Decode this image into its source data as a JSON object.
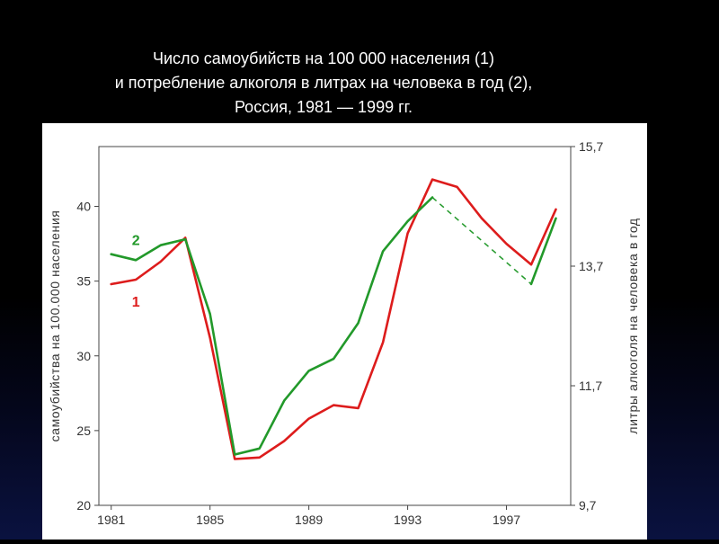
{
  "title_lines": [
    "Число самоубийств на 100 000  населения (1)",
    "и потребление алкоголя в литрах на человека в год (2),",
    "Россия, 1981 — 1999 гг."
  ],
  "chart_data": {
    "type": "line",
    "title": "Число самоубийств на 100 000  населения (1) и потребление алкоголя в литрах на человека в год (2), Россия, 1981 — 1999 гг.",
    "xlabel": "",
    "ylabel": "самоубийства на 100.000 населения",
    "y2label": "литры алкоголя на человека в год",
    "xlim": [
      1980.5,
      1999.6
    ],
    "ylim": [
      20,
      44
    ],
    "y2lim": [
      9.7,
      15.7
    ],
    "x_ticks": [
      1981,
      1985,
      1989,
      1993,
      1997
    ],
    "x_tick_labels": [
      "1981",
      "1985",
      "1989",
      "1993",
      "1997"
    ],
    "y_ticks": [
      20,
      25,
      30,
      35,
      40
    ],
    "y_tick_labels": [
      "20",
      "25",
      "30",
      "35",
      "40"
    ],
    "y2_ticks": [
      9.7,
      11.7,
      13.7,
      15.7
    ],
    "y2_tick_labels": [
      "9,7",
      "11,7",
      "13,7",
      "15,7"
    ],
    "grid": false,
    "series": [
      {
        "name": "1",
        "axis": "left",
        "color": "#dd1c1c",
        "x": [
          1981,
          1982,
          1983,
          1984,
          1985,
          1986,
          1987,
          1988,
          1989,
          1990,
          1991,
          1992,
          1993,
          1994,
          1995,
          1996,
          1997,
          1998,
          1999
        ],
        "y": [
          34.8,
          35.1,
          36.3,
          37.9,
          31.2,
          23.1,
          23.2,
          24.3,
          25.8,
          26.7,
          26.5,
          30.9,
          38.2,
          41.8,
          41.3,
          39.2,
          37.5,
          36.1,
          39.8
        ]
      },
      {
        "name": "2",
        "axis": "right",
        "color": "#22992a",
        "x": [
          1981,
          1982,
          1983,
          1984,
          1985,
          1986,
          1987,
          1988,
          1989,
          1990,
          1991,
          1992,
          1993,
          1994,
          1998,
          1999
        ],
        "y": [
          13.9,
          13.8,
          14.05,
          14.15,
          12.9,
          10.55,
          10.65,
          11.45,
          11.95,
          12.15,
          12.75,
          13.95,
          14.45,
          14.85,
          13.4,
          14.5
        ],
        "dashed_segments": [
          [
            1994,
            1998
          ]
        ]
      }
    ],
    "series_labels": [
      {
        "text": "2",
        "series": "2",
        "x": 1982.0,
        "y": 37.4
      },
      {
        "text": "1",
        "series": "1",
        "x": 1982.0,
        "y": 33.3
      }
    ]
  }
}
